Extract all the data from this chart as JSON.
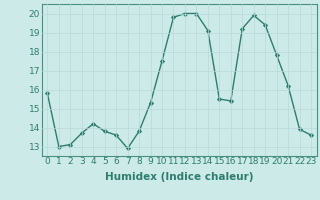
{
  "x": [
    0,
    1,
    2,
    3,
    4,
    5,
    6,
    7,
    8,
    9,
    10,
    11,
    12,
    13,
    14,
    15,
    16,
    17,
    18,
    19,
    20,
    21,
    22,
    23
  ],
  "y": [
    15.8,
    13.0,
    13.1,
    13.7,
    14.2,
    13.8,
    13.6,
    12.9,
    13.8,
    15.3,
    17.5,
    19.8,
    20.0,
    20.0,
    19.1,
    15.5,
    15.4,
    19.2,
    19.9,
    19.4,
    17.8,
    16.2,
    13.9,
    13.6
  ],
  "line_color": "#2e7d6e",
  "marker": "D",
  "marker_size": 2.2,
  "line_width": 1.0,
  "xlabel": "Humidex (Indice chaleur)",
  "xlabel_fontsize": 7.5,
  "xlabel_fontweight": "bold",
  "xlim": [
    -0.5,
    23.5
  ],
  "ylim": [
    12.5,
    20.5
  ],
  "yticks": [
    13,
    14,
    15,
    16,
    17,
    18,
    19,
    20
  ],
  "xtick_labels": [
    "0",
    "1",
    "2",
    "3",
    "4",
    "5",
    "6",
    "7",
    "8",
    "9",
    "10",
    "11",
    "12",
    "13",
    "14",
    "15",
    "16",
    "17",
    "18",
    "19",
    "20",
    "21",
    "22",
    "23"
  ],
  "background_color": "#cceae8",
  "grid_color": "#b8d8d8",
  "tick_fontsize": 6.5,
  "spine_color": "#4a9080",
  "figure_width": 3.2,
  "figure_height": 2.0,
  "dpi": 100
}
